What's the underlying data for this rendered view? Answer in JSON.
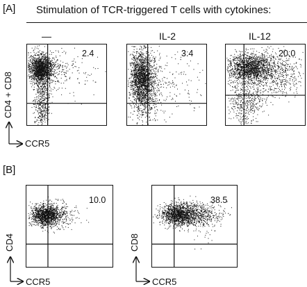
{
  "panelA": {
    "label": "[A]",
    "title": "Stimulation of TCR-triggered T cells with cytokines:",
    "conditions": [
      "—",
      "IL-2",
      "IL-12"
    ],
    "percentages": [
      "2.4",
      "3.4",
      "20.0"
    ],
    "y_axis_label": "CD4 + CD8",
    "x_axis_label": "CCR5"
  },
  "panelB": {
    "label": "[B]",
    "percentages": [
      "10.0",
      "38.5"
    ],
    "y_axis_labels": [
      "CD4",
      "CD8"
    ],
    "x_axis_labels": [
      "CCR5",
      "CCR5"
    ]
  }
}
